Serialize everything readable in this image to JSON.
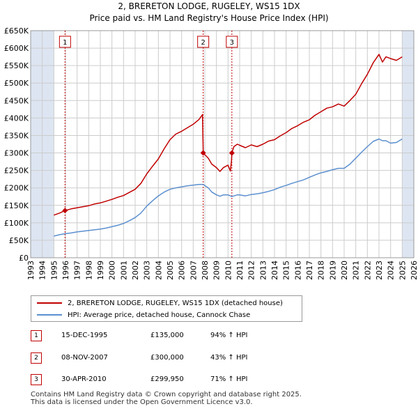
{
  "header": {
    "title": "2, BRERETON LODGE, RUGELEY, WS15 1DX",
    "subtitle": "Price paid vs. HM Land Registry's House Price Index (HPI)"
  },
  "legend": {
    "property_label": "2, BRERETON LODGE, RUGELEY, WS15 1DX (detached house)",
    "hpi_label": "HPI: Average price, detached house, Cannock Chase"
  },
  "sales": [
    {
      "num": "1",
      "date": "15-DEC-1995",
      "price": "£135,000",
      "hpi": "94% ↑ HPI"
    },
    {
      "num": "2",
      "date": "08-NOV-2007",
      "price": "£300,000",
      "hpi": "43% ↑ HPI"
    },
    {
      "num": "3",
      "date": "30-APR-2010",
      "price": "£299,950",
      "hpi": "71% ↑ HPI"
    }
  ],
  "footer": {
    "line1": "Contains HM Land Registry data © Crown copyright and database right 2025.",
    "line2": "This data is licensed under the Open Government Licence v3.0."
  },
  "colors": {
    "property": "#c00000",
    "hpi": "#5b8fcf",
    "shade": "#dde5f2",
    "grid": "#cccccc"
  },
  "chart_data": {
    "type": "line",
    "title": "2, BRERETON LODGE, RUGELEY, WS15 1DX",
    "xlim": [
      1993,
      2026
    ],
    "ylim": [
      0,
      650000
    ],
    "x_ticks": [
      "1993",
      "1994",
      "1995",
      "1996",
      "1997",
      "1998",
      "1999",
      "2000",
      "2001",
      "2002",
      "2003",
      "2004",
      "2005",
      "2006",
      "2007",
      "2008",
      "2009",
      "2010",
      "2011",
      "2012",
      "2013",
      "2014",
      "2015",
      "2016",
      "2017",
      "2018",
      "2019",
      "2020",
      "2021",
      "2022",
      "2023",
      "2024",
      "2025",
      "2026"
    ],
    "y_ticks": [
      {
        "value": 0,
        "label": "£0"
      },
      {
        "value": 50000,
        "label": "£50K"
      },
      {
        "value": 100000,
        "label": "£100K"
      },
      {
        "value": 150000,
        "label": "£150K"
      },
      {
        "value": 200000,
        "label": "£200K"
      },
      {
        "value": 250000,
        "label": "£250K"
      },
      {
        "value": 300000,
        "label": "£300K"
      },
      {
        "value": 350000,
        "label": "£350K"
      },
      {
        "value": 400000,
        "label": "£400K"
      },
      {
        "value": 450000,
        "label": "£450K"
      },
      {
        "value": 500000,
        "label": "£500K"
      },
      {
        "value": 550000,
        "label": "£550K"
      },
      {
        "value": 600000,
        "label": "£600K"
      },
      {
        "value": 650000,
        "label": "£650K"
      }
    ],
    "shaded_ranges": [
      [
        1993,
        1995.0
      ],
      [
        2025.0,
        2026
      ]
    ],
    "sale_markers": [
      {
        "label": "1",
        "x": 1995.96,
        "y": 135000
      },
      {
        "label": "2",
        "x": 2007.86,
        "y": 300000
      },
      {
        "label": "3",
        "x": 2010.33,
        "y": 299950
      }
    ],
    "series": [
      {
        "name": "2, BRERETON LODGE, RUGELEY, WS15 1DX (detached house)",
        "x": [
          1995.0,
          1995.5,
          1995.96,
          1996.5,
          1997.0,
          1997.5,
          1998.0,
          1998.5,
          1999.0,
          1999.5,
          2000.0,
          2000.5,
          2001.0,
          2001.5,
          2002.0,
          2002.5,
          2003.0,
          2003.5,
          2004.0,
          2004.5,
          2005.0,
          2005.5,
          2006.0,
          2006.5,
          2007.0,
          2007.5,
          2007.8,
          2007.86,
          2008.0,
          2008.3,
          2008.6,
          2009.0,
          2009.3,
          2009.6,
          2010.0,
          2010.2,
          2010.3,
          2010.33,
          2010.5,
          2010.8,
          2011.0,
          2011.5,
          2012.0,
          2012.5,
          2013.0,
          2013.5,
          2014.0,
          2014.5,
          2015.0,
          2015.5,
          2016.0,
          2016.5,
          2017.0,
          2017.5,
          2018.0,
          2018.5,
          2019.0,
          2019.5,
          2020.0,
          2020.5,
          2021.0,
          2021.5,
          2022.0,
          2022.5,
          2023.0,
          2023.3,
          2023.6,
          2024.0,
          2024.5,
          2025.0
        ],
        "y": [
          122000,
          128000,
          135000,
          140000,
          143000,
          146000,
          149000,
          154000,
          157000,
          162000,
          167000,
          173000,
          178000,
          187000,
          196000,
          213000,
          240000,
          262000,
          283000,
          312000,
          338000,
          354000,
          362000,
          372000,
          382000,
          396000,
          410000,
          300000,
          295000,
          285000,
          268000,
          258000,
          247000,
          258000,
          265000,
          248000,
          278000,
          299950,
          318000,
          325000,
          322000,
          315000,
          323000,
          318000,
          325000,
          334000,
          338000,
          349000,
          358000,
          370000,
          378000,
          388000,
          395000,
          408000,
          418000,
          428000,
          432000,
          440000,
          434000,
          450000,
          468000,
          498000,
          525000,
          558000,
          582000,
          560000,
          575000,
          570000,
          565000,
          575000
        ]
      },
      {
        "name": "HPI: Average price, detached house, Cannock Chase",
        "x": [
          1995.0,
          1995.5,
          1996.0,
          1996.5,
          1997.0,
          1997.5,
          1998.0,
          1998.5,
          1999.0,
          1999.5,
          2000.0,
          2000.5,
          2001.0,
          2001.5,
          2002.0,
          2002.5,
          2003.0,
          2003.5,
          2004.0,
          2004.5,
          2005.0,
          2005.5,
          2006.0,
          2006.5,
          2007.0,
          2007.5,
          2007.86,
          2008.3,
          2008.6,
          2009.0,
          2009.3,
          2009.6,
          2010.0,
          2010.33,
          2010.8,
          2011.0,
          2011.5,
          2012.0,
          2012.5,
          2013.0,
          2013.5,
          2014.0,
          2014.5,
          2015.0,
          2015.5,
          2016.0,
          2016.5,
          2017.0,
          2017.5,
          2018.0,
          2018.5,
          2019.0,
          2019.5,
          2020.0,
          2020.5,
          2021.0,
          2021.5,
          2022.0,
          2022.5,
          2023.0,
          2023.3,
          2023.6,
          2024.0,
          2024.5,
          2025.0
        ],
        "y": [
          62000,
          66000,
          69000,
          71000,
          74000,
          76000,
          78000,
          80000,
          82000,
          85000,
          89000,
          93000,
          98000,
          106000,
          115000,
          128000,
          148000,
          163000,
          177000,
          188000,
          196000,
          200000,
          203000,
          206000,
          208000,
          210000,
          210000,
          200000,
          188000,
          180000,
          176000,
          180000,
          180000,
          175000,
          180000,
          180000,
          177000,
          181000,
          183000,
          186000,
          190000,
          195000,
          202000,
          207000,
          213000,
          218000,
          223000,
          230000,
          237000,
          243000,
          247000,
          252000,
          256000,
          256000,
          268000,
          285000,
          302000,
          318000,
          333000,
          340000,
          335000,
          335000,
          328000,
          330000,
          340000
        ]
      }
    ]
  }
}
